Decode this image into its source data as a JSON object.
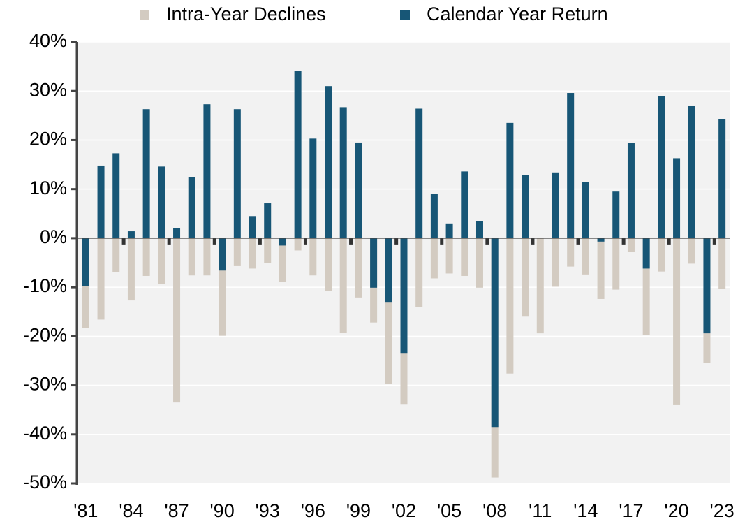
{
  "chart_data": {
    "type": "bar",
    "legend": "top",
    "grid": true,
    "categories": [
      "'81",
      null,
      null,
      "'84",
      null,
      null,
      "'87",
      null,
      null,
      "'90",
      null,
      null,
      "'93",
      null,
      null,
      "'96",
      null,
      null,
      "'99",
      null,
      null,
      "'02",
      null,
      null,
      "'05",
      null,
      null,
      "'08",
      null,
      null,
      "'11",
      null,
      null,
      "'14",
      null,
      null,
      "'17",
      null,
      null,
      "'20",
      null,
      null,
      "'23"
    ],
    "series": [
      {
        "name": "Intra-Year Declines",
        "color": "#d3cbc1",
        "values": [
          -18.3,
          -16.6,
          -6.9,
          -12.7,
          -7.7,
          -9.4,
          -33.5,
          -7.6,
          -7.6,
          -19.9,
          -5.7,
          -6.2,
          -5.0,
          -8.9,
          -2.5,
          -7.6,
          -10.8,
          -19.3,
          -12.1,
          -17.2,
          -29.7,
          -33.8,
          -14.1,
          -8.2,
          -7.2,
          -7.7,
          -10.1,
          -48.8,
          -27.6,
          -16.0,
          -19.4,
          -9.9,
          -5.8,
          -7.4,
          -12.4,
          -10.5,
          -2.8,
          -19.8,
          -6.8,
          -33.9,
          -5.2,
          -25.4,
          -10.3
        ]
      },
      {
        "name": "Calendar Year Return",
        "color": "#175676",
        "values": [
          -9.7,
          14.8,
          17.3,
          1.4,
          26.3,
          14.6,
          2.0,
          12.4,
          27.3,
          -6.6,
          26.3,
          4.5,
          7.1,
          -1.5,
          34.1,
          20.3,
          31.0,
          26.7,
          19.5,
          -10.1,
          -13.0,
          -23.4,
          26.4,
          9.0,
          3.0,
          13.6,
          3.5,
          -38.5,
          23.5,
          12.8,
          0.0,
          13.4,
          29.6,
          11.4,
          -0.7,
          9.5,
          19.4,
          -6.2,
          28.9,
          16.3,
          26.9,
          -19.4,
          24.2
        ]
      }
    ],
    "ylim": [
      -50,
      40
    ],
    "yticks": [
      {
        "value": -50,
        "label": "-50%"
      },
      {
        "value": -40,
        "label": "-40%"
      },
      {
        "value": -30,
        "label": "-30%"
      },
      {
        "value": -20,
        "label": "-20%"
      },
      {
        "value": -10,
        "label": "-10%"
      },
      {
        "value": 0,
        "label": "0%"
      },
      {
        "value": 10,
        "label": "10%"
      },
      {
        "value": 20,
        "label": "20%"
      },
      {
        "value": 30,
        "label": "30%"
      },
      {
        "value": 40,
        "label": "40%"
      }
    ]
  }
}
